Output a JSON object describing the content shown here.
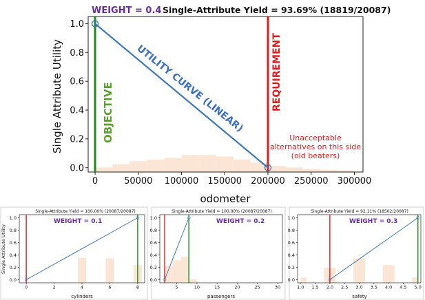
{
  "chart_data": [
    {
      "type": "line",
      "title": "Single-Attribute Yield = 93.69% (18819/20087)",
      "xlabel": "odometer",
      "ylabel": "Single Attribute Utility",
      "xlim": [
        -8000,
        310000
      ],
      "ylim": [
        -0.03,
        1.05
      ],
      "xticks": [
        0,
        50000,
        100000,
        150000,
        200000,
        250000,
        300000
      ],
      "xtick_labels": [
        "0",
        "50000",
        "100000",
        "150000",
        "200000",
        "250000",
        "300000"
      ],
      "yticks": [
        0.0,
        0.2,
        0.4,
        0.6,
        0.8,
        1.0
      ],
      "ytick_labels": [
        "0.0",
        "0.2",
        "0.4",
        "0.6",
        "0.8",
        "1.0"
      ],
      "utility_curve": {
        "x": [
          0,
          200000
        ],
        "y": [
          1.0,
          0.0
        ]
      },
      "objective": 0,
      "requirement": 200000,
      "histogram": {
        "bin_edges": [
          0,
          20000,
          40000,
          60000,
          80000,
          100000,
          120000,
          140000,
          160000,
          180000,
          200000,
          220000,
          240000,
          260000,
          280000,
          300000
        ],
        "heights": [
          0.03,
          0.05,
          0.07,
          0.08,
          0.09,
          0.11,
          0.11,
          0.1,
          0.08,
          0.06,
          0.04,
          0.03,
          0.02,
          0.015,
          0.01
        ]
      },
      "annotations": {
        "weight": "WEIGHT = 0.4",
        "objective_label": "OBJECTIVE",
        "requirement_label": "REQUIREMENT",
        "curve_label": "UTILITY CURVE (LINEAR)",
        "unacceptable": [
          "Unacceptable",
          "alternatives on this side",
          "(old beaters)"
        ]
      },
      "colors": {
        "curve": "#3b78b5",
        "objective": "#1a8a1a",
        "requirement": "#e01b1b",
        "weight": "#6a2ca0",
        "annotation_green": "#5aa02c",
        "annotation_blue": "#3a6fc4",
        "hist": "#fbe6d6"
      }
    },
    {
      "type": "line",
      "title": "Single-Attribute Yield = 100.00% (20087/20087)",
      "xlabel": "cylinders",
      "ylabel": "Single Attribute Utility",
      "xlim": [
        -0.5,
        8.5
      ],
      "ylim": [
        -0.05,
        1.05
      ],
      "xticks": [
        0,
        2,
        4,
        6,
        8
      ],
      "xtick_labels": [
        "0",
        "2",
        "4",
        "6",
        "8"
      ],
      "yticks": [
        0.0,
        0.2,
        0.4,
        0.6,
        0.8,
        1.0
      ],
      "ytick_labels": [
        "0.0",
        "0.2",
        "0.4",
        "0.6",
        "0.8",
        "1.0"
      ],
      "utility_curve": {
        "x": [
          0,
          8
        ],
        "y": [
          0.0,
          1.0
        ]
      },
      "objective": 8,
      "requirement": 0,
      "histogram": {
        "bin_edges": [
          3.7,
          4.3,
          5.7,
          6.3,
          7.7,
          8.3
        ],
        "heights": [
          0.37,
          0.0,
          0.36,
          0.0,
          0.26
        ]
      },
      "annotations": {
        "weight": "WEIGHT = 0.1"
      },
      "colors": {
        "curve": "#3b78b5",
        "objective": "#1a8a1a",
        "requirement": "#e01b1b",
        "weight": "#6a2ca0",
        "hist": "#fbe6d6"
      }
    },
    {
      "type": "line",
      "title": "Single-Attribute Yield = 100.00% (20087/20087)",
      "xlabel": "passengers",
      "ylabel": "",
      "xlim": [
        0.8,
        31.2
      ],
      "ylim": [
        -0.05,
        1.05
      ],
      "xticks": [
        5,
        10,
        15,
        20,
        25,
        30
      ],
      "xtick_labels": [
        "5",
        "10",
        "15",
        "20",
        "25",
        "30"
      ],
      "yticks": [
        0.0,
        0.2,
        0.4,
        0.6,
        0.8,
        1.0
      ],
      "ytick_labels": [
        "0.0",
        "0.2",
        "0.4",
        "0.6",
        "0.8",
        "1.0"
      ],
      "utility_curve": {
        "x": [
          2,
          8
        ],
        "y": [
          0.0,
          1.0
        ]
      },
      "objective": 8,
      "requirement": 2,
      "histogram": {
        "bin_edges": [
          2,
          4,
          6,
          8,
          10
        ],
        "heights": [
          0.25,
          0.33,
          0.38,
          0.05
        ]
      },
      "annotations": {
        "weight": "WEIGHT = 0.2"
      },
      "colors": {
        "curve": "#3b78b5",
        "objective": "#1a8a1a",
        "requirement": "#e01b1b",
        "weight": "#6a2ca0",
        "hist": "#fbe6d6"
      }
    },
    {
      "type": "line",
      "title": "Single-Attribute Yield = 92.11% (18502/20087)",
      "xlabel": "safety",
      "ylabel": "",
      "xlim": [
        0.9,
        5.1
      ],
      "ylim": [
        -0.05,
        1.05
      ],
      "xticks": [
        1.0,
        1.5,
        2.0,
        2.5,
        3.0,
        3.5,
        4.0,
        4.5,
        5.0
      ],
      "xtick_labels": [
        "1.0",
        "1.5",
        "2.0",
        "2.5",
        "3.0",
        "3.5",
        "4.0",
        "4.5",
        "5.0"
      ],
      "yticks": [
        0.0,
        0.2,
        0.4,
        0.6,
        0.8,
        1.0
      ],
      "ytick_labels": [
        "0.0",
        "0.2",
        "0.4",
        "0.6",
        "0.8",
        "1.0"
      ],
      "utility_curve": {
        "x": [
          2,
          5
        ],
        "y": [
          0.0,
          1.0
        ]
      },
      "objective": 5,
      "requirement": 2,
      "histogram": {
        "bin_edges": [
          1.0,
          1.2,
          1.8,
          2.2,
          2.8,
          3.2,
          3.8,
          4.2,
          4.8,
          5.0
        ],
        "heights": [
          0.08,
          0.0,
          0.22,
          0.0,
          0.36,
          0.0,
          0.26,
          0.0,
          0.08
        ]
      },
      "annotations": {
        "weight": "WEIGHT = 0.3"
      },
      "colors": {
        "curve": "#3b78b5",
        "objective": "#1a8a1a",
        "requirement": "#e01b1b",
        "weight": "#6a2ca0",
        "hist": "#fbe6d6"
      }
    }
  ]
}
